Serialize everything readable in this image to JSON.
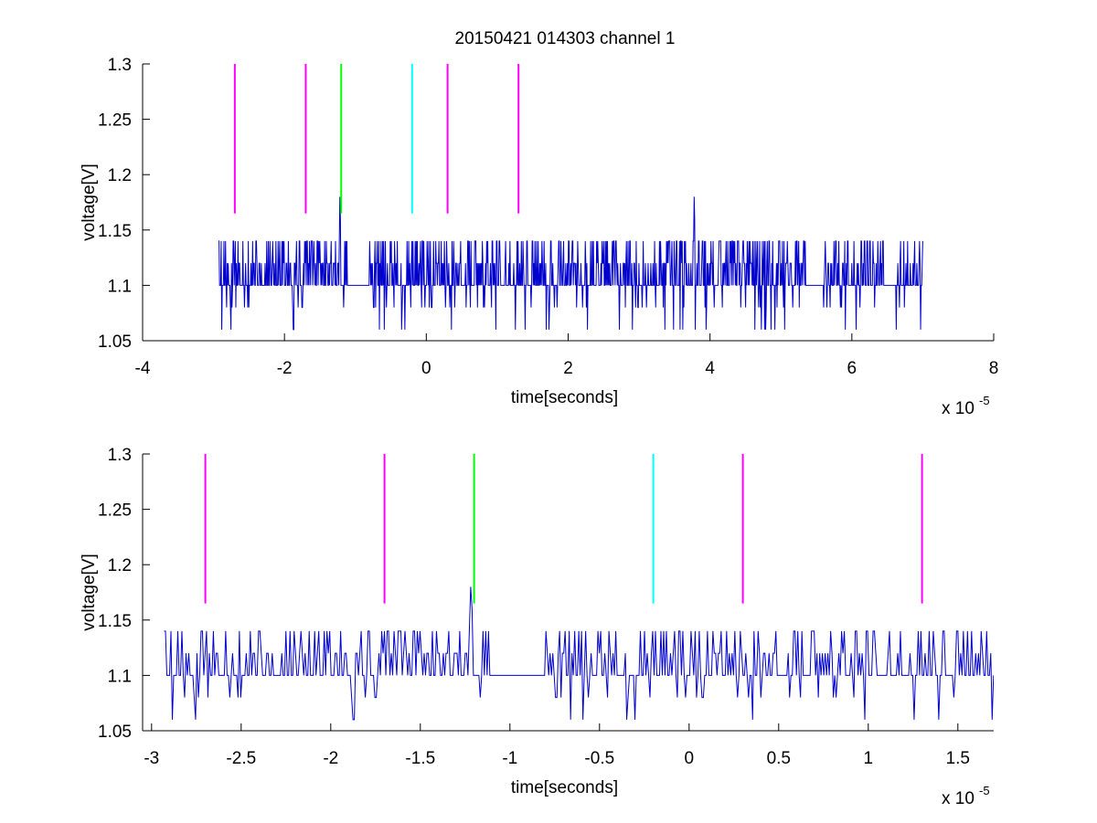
{
  "figure_title": "20150421 014303 channel 1",
  "chart_data": [
    {
      "type": "line",
      "title": "20150421 014303 channel 1",
      "xlabel": "time[seconds]",
      "ylabel": "voltage[V]",
      "x_exponent_label": "x 10",
      "x_exponent": "-5",
      "xlim": [
        -4,
        8
      ],
      "ylim": [
        1.05,
        1.3
      ],
      "xticks": [
        -4,
        -2,
        0,
        2,
        4,
        6,
        8
      ],
      "xtick_labels": [
        "-4",
        "-2",
        "0",
        "2",
        "4",
        "6",
        "8"
      ],
      "yticks": [
        1.05,
        1.1,
        1.15,
        1.2,
        1.25,
        1.3
      ],
      "ytick_labels": [
        "1.05",
        "1.1",
        "1.15",
        "1.2",
        "1.25",
        "1.3"
      ],
      "grid": false,
      "signal": {
        "color": "#0000cc",
        "x_start": -2.93,
        "x_end": 7.0,
        "baseline": 1.1,
        "levels": [
          1.06,
          1.08,
          1.1,
          1.12,
          1.14,
          1.16,
          1.18
        ],
        "spikes": [
          {
            "x": -1.22,
            "y": 1.18
          },
          {
            "x": 3.78,
            "y": 1.18
          }
        ]
      },
      "markers": [
        {
          "x": -2.7,
          "y_min": 1.165,
          "y_max": 1.3,
          "color": "#ff00ff"
        },
        {
          "x": -1.7,
          "y_min": 1.165,
          "y_max": 1.3,
          "color": "#ff00ff"
        },
        {
          "x": -1.2,
          "y_min": 1.165,
          "y_max": 1.3,
          "color": "#00ff00"
        },
        {
          "x": -0.2,
          "y_min": 1.165,
          "y_max": 1.3,
          "color": "#00ffff"
        },
        {
          "x": 0.3,
          "y_min": 1.165,
          "y_max": 1.3,
          "color": "#ff00ff"
        },
        {
          "x": 1.3,
          "y_min": 1.165,
          "y_max": 1.3,
          "color": "#ff00ff"
        }
      ]
    },
    {
      "type": "line",
      "xlabel": "time[seconds]",
      "ylabel": "voltage[V]",
      "x_exponent_label": "x 10",
      "x_exponent": "-5",
      "xlim": [
        -3.05,
        1.7
      ],
      "ylim": [
        1.05,
        1.3
      ],
      "xticks": [
        -3,
        -2.5,
        -2,
        -1.5,
        -1,
        -0.5,
        0,
        0.5,
        1,
        1.5
      ],
      "xtick_labels": [
        "-3",
        "-2.5",
        "-2",
        "-1.5",
        "-1",
        "-0.5",
        "0",
        "0.5",
        "1",
        "1.5"
      ],
      "yticks": [
        1.05,
        1.1,
        1.15,
        1.2,
        1.25,
        1.3
      ],
      "ytick_labels": [
        "1.05",
        "1.1",
        "1.15",
        "1.2",
        "1.25",
        "1.3"
      ],
      "grid": false,
      "signal": {
        "color": "#0000cc",
        "x_start": -2.93,
        "x_end": 1.7,
        "baseline": 1.1,
        "levels": [
          1.06,
          1.08,
          1.1,
          1.12,
          1.14,
          1.16,
          1.18
        ],
        "spikes": [
          {
            "x": -1.22,
            "y": 1.18
          }
        ]
      },
      "markers": [
        {
          "x": -2.7,
          "y_min": 1.165,
          "y_max": 1.3,
          "color": "#ff00ff"
        },
        {
          "x": -1.7,
          "y_min": 1.165,
          "y_max": 1.3,
          "color": "#ff00ff"
        },
        {
          "x": -1.2,
          "y_min": 1.165,
          "y_max": 1.3,
          "color": "#00ff00"
        },
        {
          "x": -0.2,
          "y_min": 1.165,
          "y_max": 1.3,
          "color": "#00ffff"
        },
        {
          "x": 0.3,
          "y_min": 1.165,
          "y_max": 1.3,
          "color": "#ff00ff"
        },
        {
          "x": 1.3,
          "y_min": 1.165,
          "y_max": 1.3,
          "color": "#ff00ff"
        }
      ]
    }
  ]
}
